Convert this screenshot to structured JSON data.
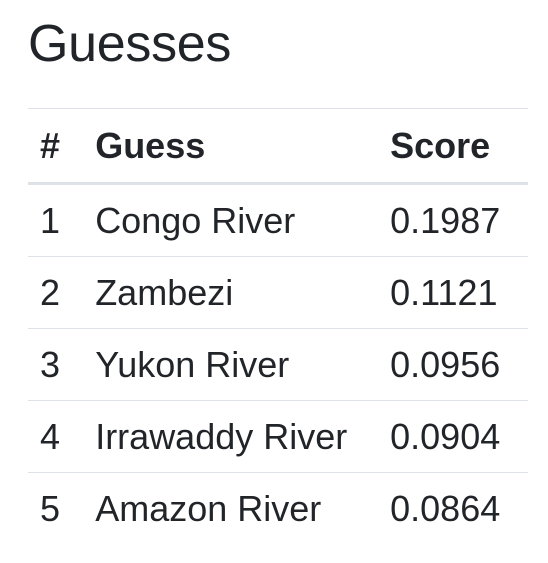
{
  "page": {
    "title": "Guesses"
  },
  "table": {
    "headers": {
      "rank": "#",
      "guess": "Guess",
      "score": "Score"
    },
    "rows": [
      {
        "rank": "1",
        "guess": "Congo River",
        "score": "0.1987"
      },
      {
        "rank": "2",
        "guess": "Zambezi",
        "score": "0.1121"
      },
      {
        "rank": "3",
        "guess": "Yukon River",
        "score": "0.0956"
      },
      {
        "rank": "4",
        "guess": "Irrawaddy River",
        "score": "0.0904"
      },
      {
        "rank": "5",
        "guess": "Amazon River",
        "score": "0.0864"
      }
    ]
  },
  "colors": {
    "text": "#212529",
    "border": "#dee2e6",
    "background": "#ffffff"
  }
}
